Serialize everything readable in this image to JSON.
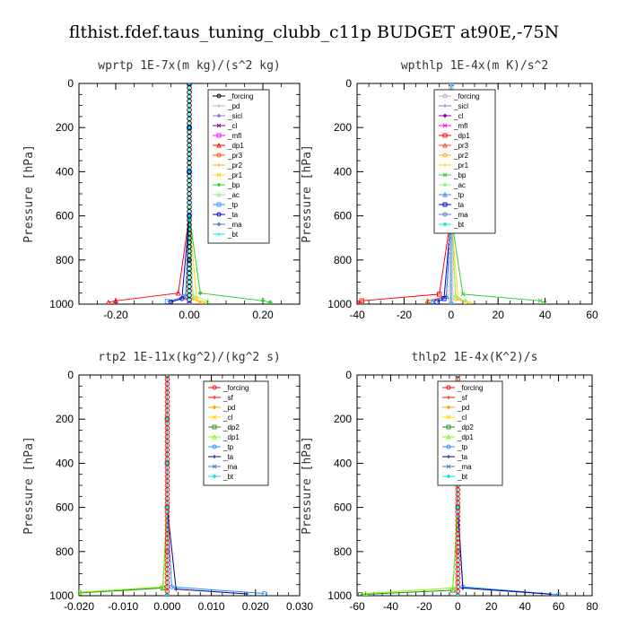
{
  "figure": {
    "title": "flthist.fdef.taus_tuning_clubb_c11p  BUDGET at90E,-75N"
  },
  "chart_data": [
    {
      "type": "line",
      "title": "wprtp   1E-7x(m kg)/(s^2 kg)",
      "ylabel": "Pressure [hPa]",
      "xlim": [
        -0.3,
        0.3
      ],
      "ylim": [
        1000,
        0
      ],
      "xticks": [
        "-0.20",
        "0.00",
        "0.20"
      ],
      "xtick_values": [
        -0.2,
        0.0,
        0.2
      ],
      "yticks": [
        "0",
        "200",
        "400",
        "600",
        "800",
        "1000"
      ],
      "ytick_values": [
        0,
        200,
        400,
        600,
        800,
        1000
      ],
      "series": [
        {
          "name": "_forcing",
          "color": "#000000",
          "x": [
            0,
            0,
            0,
            0,
            0,
            0
          ],
          "y": [
            0,
            200,
            400,
            600,
            800,
            1000
          ]
        },
        {
          "name": "_pd",
          "color": "#c8a2c8",
          "x": [
            0,
            0,
            0,
            0,
            0,
            0
          ],
          "y": [
            0,
            200,
            400,
            600,
            800,
            1000
          ]
        },
        {
          "name": "_sicl",
          "color": "#9370db",
          "x": [
            0,
            0,
            0,
            0,
            0,
            0
          ],
          "y": [
            0,
            200,
            400,
            600,
            800,
            1000
          ]
        },
        {
          "name": "_cl",
          "color": "#8b008b",
          "x": [
            0,
            0,
            0,
            0,
            0,
            0
          ],
          "y": [
            0,
            200,
            400,
            600,
            800,
            1000
          ]
        },
        {
          "name": "_mfl",
          "color": "#ff00ff",
          "x": [
            0,
            0,
            0,
            0,
            0,
            0
          ],
          "y": [
            0,
            200,
            400,
            600,
            800,
            1000
          ]
        },
        {
          "name": "_dp1",
          "color": "#ff0000",
          "x": [
            0,
            0,
            0,
            0,
            -0.03,
            -0.2,
            -0.22
          ],
          "y": [
            0,
            200,
            400,
            600,
            950,
            985,
            992
          ]
        },
        {
          "name": "_pr3",
          "color": "#ff4500",
          "x": [
            0,
            0,
            0,
            0,
            -0.01,
            -0.05
          ],
          "y": [
            0,
            200,
            400,
            600,
            970,
            990
          ]
        },
        {
          "name": "_pr2",
          "color": "#ffa500",
          "x": [
            0,
            0,
            0,
            0,
            0.01,
            0.03
          ],
          "y": [
            0,
            200,
            400,
            600,
            975,
            992
          ]
        },
        {
          "name": "_pr1",
          "color": "#ffd700",
          "x": [
            0,
            0,
            0,
            0,
            0.02,
            0.04
          ],
          "y": [
            0,
            200,
            400,
            600,
            975,
            992
          ]
        },
        {
          "name": "_bp",
          "color": "#32cd32",
          "x": [
            0,
            0,
            0,
            0,
            0.03,
            0.2,
            0.22
          ],
          "y": [
            0,
            200,
            400,
            600,
            950,
            985,
            992
          ]
        },
        {
          "name": "_ac",
          "color": "#90ee90",
          "x": [
            0,
            0,
            0,
            0,
            0.01,
            0.05
          ],
          "y": [
            0,
            200,
            400,
            600,
            960,
            985
          ]
        },
        {
          "name": "_tp",
          "color": "#1e90ff",
          "x": [
            0,
            0,
            0,
            0,
            -0.01,
            -0.06
          ],
          "y": [
            0,
            200,
            400,
            600,
            965,
            988
          ]
        },
        {
          "name": "_ta",
          "color": "#0000cd",
          "x": [
            0,
            0,
            0,
            0,
            -0.02,
            -0.05
          ],
          "y": [
            0,
            200,
            400,
            600,
            975,
            990
          ]
        },
        {
          "name": "_ma",
          "color": "#4682b4",
          "x": [
            0,
            0,
            0,
            0,
            0
          ],
          "y": [
            0,
            200,
            400,
            600,
            1000
          ]
        },
        {
          "name": "_bt",
          "color": "#00e5ee",
          "x": [
            0,
            0,
            0,
            0,
            0
          ],
          "y": [
            0,
            200,
            400,
            600,
            1000
          ]
        }
      ]
    },
    {
      "type": "line",
      "title": "wpthlp   1E-4x(m K)/s^2",
      "ylabel": "Pressure [hPa]",
      "xlim": [
        -40,
        60
      ],
      "ylim": [
        1000,
        0
      ],
      "xticks": [
        "-40",
        "-20",
        "0",
        "20",
        "40",
        "60"
      ],
      "xtick_values": [
        -40,
        -20,
        0,
        20,
        40,
        60
      ],
      "yticks": [
        "0",
        "200",
        "400",
        "600",
        "800",
        "1000"
      ],
      "ytick_values": [
        0,
        200,
        400,
        600,
        800,
        1000
      ],
      "series": [
        {
          "name": "_forcing",
          "color": "#c8a2c8",
          "x": [
            0,
            0,
            0,
            0,
            0
          ],
          "y": [
            0,
            200,
            400,
            600,
            1000
          ]
        },
        {
          "name": "_sicl",
          "color": "#9370db",
          "x": [
            0,
            0,
            0,
            0,
            0
          ],
          "y": [
            0,
            200,
            400,
            600,
            1000
          ]
        },
        {
          "name": "_cl",
          "color": "#8b008b",
          "x": [
            0,
            0,
            0,
            0,
            0
          ],
          "y": [
            0,
            200,
            400,
            600,
            1000
          ]
        },
        {
          "name": "_mfl",
          "color": "#ff00ff",
          "x": [
            0,
            0,
            0,
            0,
            0
          ],
          "y": [
            0,
            200,
            400,
            600,
            1000
          ]
        },
        {
          "name": "_dp1",
          "color": "#ff0000",
          "x": [
            0,
            0,
            0,
            0,
            -5,
            -38,
            -40
          ],
          "y": [
            0,
            200,
            400,
            600,
            955,
            985,
            995
          ]
        },
        {
          "name": "_pr3",
          "color": "#ff4500",
          "x": [
            0,
            0,
            0,
            0,
            -2,
            -10
          ],
          "y": [
            0,
            200,
            400,
            600,
            965,
            985
          ]
        },
        {
          "name": "_pr2",
          "color": "#ffa500",
          "x": [
            0,
            0,
            0,
            0,
            2,
            6
          ],
          "y": [
            0,
            200,
            400,
            600,
            975,
            992
          ]
        },
        {
          "name": "_pr1",
          "color": "#ffd700",
          "x": [
            0,
            0,
            0,
            0,
            3,
            8
          ],
          "y": [
            0,
            200,
            400,
            600,
            975,
            992
          ]
        },
        {
          "name": "_bp",
          "color": "#32cd32",
          "x": [
            0,
            0,
            0,
            0,
            5,
            38,
            40
          ],
          "y": [
            0,
            200,
            400,
            600,
            955,
            985,
            995
          ]
        },
        {
          "name": "_ac",
          "color": "#90ee90",
          "x": [
            0,
            0,
            0,
            0,
            2,
            6
          ],
          "y": [
            0,
            200,
            400,
            600,
            965,
            985
          ]
        },
        {
          "name": "_tp",
          "color": "#1e90ff",
          "x": [
            0,
            0,
            0,
            0,
            -2,
            -8
          ],
          "y": [
            0,
            200,
            400,
            600,
            965,
            988
          ]
        },
        {
          "name": "_ta",
          "color": "#0000cd",
          "x": [
            0,
            0,
            0,
            0,
            -3,
            -6
          ],
          "y": [
            0,
            200,
            400,
            600,
            975,
            990
          ]
        },
        {
          "name": "_ma",
          "color": "#4682b4",
          "x": [
            0,
            0,
            0,
            0,
            0
          ],
          "y": [
            0,
            200,
            400,
            600,
            1000
          ]
        },
        {
          "name": "_bt",
          "color": "#00e5ee",
          "x": [
            0,
            0,
            0,
            0,
            0
          ],
          "y": [
            0,
            200,
            400,
            600,
            1000
          ]
        }
      ]
    },
    {
      "type": "line",
      "title": "rtp2   1E-11x(kg^2)/(kg^2 s)",
      "ylabel": "Pressure [hPa]",
      "xlim": [
        -0.02,
        0.03
      ],
      "ylim": [
        1000,
        0
      ],
      "xticks": [
        "-0.020",
        "-0.010",
        "0.000",
        "0.010",
        "0.020",
        "0.030"
      ],
      "xtick_values": [
        -0.02,
        -0.01,
        0.0,
        0.01,
        0.02,
        0.03
      ],
      "yticks": [
        "0",
        "200",
        "400",
        "600",
        "800",
        "1000"
      ],
      "ytick_values": [
        0,
        200,
        400,
        600,
        800,
        1000
      ],
      "series": [
        {
          "name": "_forcing",
          "color": "#ff0000",
          "x": [
            0,
            0,
            0,
            0,
            0,
            0
          ],
          "y": [
            0,
            200,
            400,
            600,
            800,
            1000
          ]
        },
        {
          "name": "_sf",
          "color": "#ff0000",
          "x": [
            0,
            0,
            0,
            0,
            0,
            0
          ],
          "y": [
            0,
            200,
            400,
            600,
            800,
            1000
          ]
        },
        {
          "name": "_pd",
          "color": "#ffa500",
          "x": [
            0,
            0,
            0,
            0,
            0
          ],
          "y": [
            0,
            200,
            400,
            600,
            1000
          ]
        },
        {
          "name": "_cl",
          "color": "#ffd700",
          "x": [
            0,
            0,
            0,
            0,
            0
          ],
          "y": [
            0,
            200,
            400,
            600,
            1000
          ]
        },
        {
          "name": "_dp2",
          "color": "#228b22",
          "x": [
            0,
            0,
            0,
            0,
            -0.001,
            -0.02
          ],
          "y": [
            0,
            200,
            400,
            600,
            965,
            988
          ]
        },
        {
          "name": "_dp1",
          "color": "#7cfc00",
          "x": [
            0,
            0,
            0,
            0,
            -0.001,
            -0.02
          ],
          "y": [
            0,
            200,
            400,
            600,
            960,
            985
          ]
        },
        {
          "name": "_tp",
          "color": "#1e90ff",
          "x": [
            0,
            0,
            0,
            0,
            0.001,
            0.022
          ],
          "y": [
            0,
            200,
            400,
            600,
            960,
            990
          ]
        },
        {
          "name": "_ta",
          "color": "#00008b",
          "x": [
            0,
            0,
            0,
            0,
            0.002,
            0.018
          ],
          "y": [
            0,
            200,
            400,
            600,
            970,
            992
          ]
        },
        {
          "name": "_ma",
          "color": "#4682b4",
          "x": [
            0,
            0,
            0,
            0,
            0
          ],
          "y": [
            0,
            200,
            400,
            600,
            1000
          ]
        },
        {
          "name": "_bt",
          "color": "#00e5ee",
          "x": [
            0,
            0,
            0,
            0,
            0
          ],
          "y": [
            0,
            200,
            400,
            600,
            1000
          ]
        }
      ]
    },
    {
      "type": "line",
      "title": "thlp2   1E-4x(K^2)/s",
      "ylabel": "Pressure [hPa]",
      "xlim": [
        -60,
        80
      ],
      "ylim": [
        1000,
        0
      ],
      "xticks": [
        "-60",
        "-40",
        "-20",
        "0",
        "20",
        "40",
        "60",
        "80"
      ],
      "xtick_values": [
        -60,
        -40,
        -20,
        0,
        20,
        40,
        60,
        80
      ],
      "yticks": [
        "0",
        "200",
        "400",
        "600",
        "800",
        "1000"
      ],
      "ytick_values": [
        0,
        200,
        400,
        600,
        800,
        1000
      ],
      "series": [
        {
          "name": "_forcing",
          "color": "#ff0000",
          "x": [
            0,
            0,
            0,
            0,
            0,
            0
          ],
          "y": [
            0,
            200,
            400,
            600,
            800,
            1000
          ]
        },
        {
          "name": "_sf",
          "color": "#ff0000",
          "x": [
            0,
            0,
            0,
            0,
            0,
            0
          ],
          "y": [
            0,
            200,
            400,
            600,
            800,
            1000
          ]
        },
        {
          "name": "_pd",
          "color": "#ffa500",
          "x": [
            0,
            0,
            0,
            0,
            0
          ],
          "y": [
            0,
            200,
            400,
            600,
            1000
          ]
        },
        {
          "name": "_cl",
          "color": "#ffd700",
          "x": [
            0,
            0,
            0,
            0,
            0
          ],
          "y": [
            0,
            200,
            400,
            600,
            1000
          ]
        },
        {
          "name": "_dp2",
          "color": "#228b22",
          "x": [
            0,
            0,
            0,
            0,
            -3,
            -58
          ],
          "y": [
            0,
            200,
            400,
            600,
            975,
            995
          ]
        },
        {
          "name": "_dp1",
          "color": "#7cfc00",
          "x": [
            0,
            0,
            0,
            0,
            -3,
            -55
          ],
          "y": [
            0,
            200,
            400,
            600,
            965,
            990
          ]
        },
        {
          "name": "_tp",
          "color": "#1e90ff",
          "x": [
            0,
            0,
            0,
            0,
            3,
            60
          ],
          "y": [
            0,
            200,
            400,
            600,
            960,
            995
          ]
        },
        {
          "name": "_ta",
          "color": "#00008b",
          "x": [
            0,
            0,
            0,
            0,
            3,
            55
          ],
          "y": [
            0,
            200,
            400,
            600,
            965,
            993
          ]
        },
        {
          "name": "_ma",
          "color": "#4682b4",
          "x": [
            0,
            0,
            0,
            0,
            0
          ],
          "y": [
            0,
            200,
            400,
            600,
            1000
          ]
        },
        {
          "name": "_bt",
          "color": "#00e5ee",
          "x": [
            0,
            0,
            0,
            0,
            0
          ],
          "y": [
            0,
            200,
            400,
            600,
            1000
          ]
        }
      ]
    }
  ]
}
